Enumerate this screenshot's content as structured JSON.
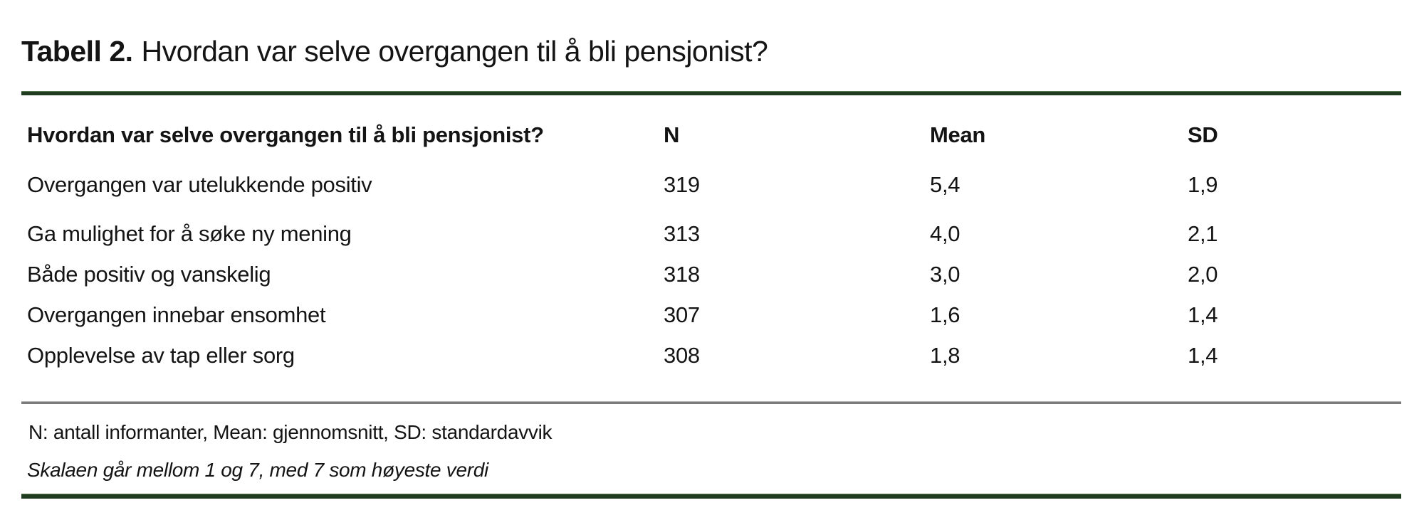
{
  "title": {
    "prefix": "Tabell 2.",
    "rest": "Hvordan var selve overgangen til å bli pensjonist?"
  },
  "table": {
    "columns": {
      "question": "Hvordan var selve overgangen til å bli pensjonist?",
      "n": "N",
      "mean": "Mean",
      "sd": "SD"
    },
    "rows": [
      {
        "label": "Overgangen var utelukkende positiv",
        "n": "319",
        "mean": "5,4",
        "sd": "1,9"
      },
      {
        "label": "Ga mulighet for å søke ny mening",
        "n": "313",
        "mean": "4,0",
        "sd": "2,1"
      },
      {
        "label": "Både positiv og vanskelig",
        "n": "318",
        "mean": "3,0",
        "sd": "2,0"
      },
      {
        "label": "Overgangen innebar ensomhet",
        "n": "307",
        "mean": "1,6",
        "sd": "1,4"
      },
      {
        "label": "Opplevelse av tap eller sorg",
        "n": "308",
        "mean": "1,8",
        "sd": "1,4"
      }
    ]
  },
  "footnotes": {
    "abbreviations": "N: antall informanter, Mean: gjennomsnitt, SD: standardavvik",
    "scale_note": "Skalaen går mellom 1 og 7, med 7 som høyeste verdi"
  },
  "colors": {
    "accent_green": "#1f3b20",
    "divider_gray": "#7a7a7a",
    "text": "#141414"
  }
}
